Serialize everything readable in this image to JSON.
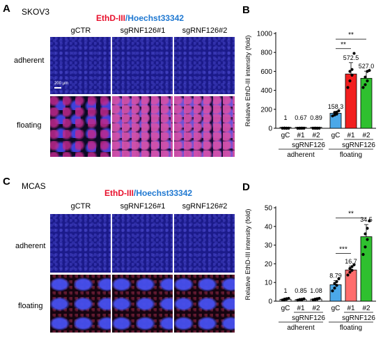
{
  "panel_letters": {
    "a": "A",
    "b": "B",
    "c": "C",
    "d": "D"
  },
  "panel_a": {
    "cell_line": "SKOV3",
    "stain_red": "EthD-III",
    "stain_sep": "/",
    "stain_blue": "Hoechst33342",
    "columns": [
      "gCTR",
      "sgRNF126#1",
      "sgRNF126#2"
    ],
    "rows": [
      "adherent",
      "floating"
    ],
    "scale_label": "200 μm"
  },
  "panel_c": {
    "cell_line": "MCAS",
    "stain_red": "EthD-III",
    "stain_sep": "/",
    "stain_blue": "Hoechst33342",
    "columns": [
      "gCTR",
      "sgRNF126#1",
      "sgRNF126#2"
    ],
    "rows": [
      "adherent",
      "floating"
    ]
  },
  "chart_data": [
    {
      "type": "bar",
      "panel": "B",
      "ylabel": "Relative EthD-III intensity (fold)",
      "ylim": [
        0,
        1000
      ],
      "yticks": [
        0,
        200,
        400,
        600,
        800,
        1000
      ],
      "categories": [
        "gC",
        "#1",
        "#2",
        "gC",
        "#1",
        "#2"
      ],
      "values": [
        1,
        0.67,
        0.89,
        158.3,
        572.5,
        527.0
      ],
      "value_labels": [
        "1",
        "0.67",
        "0.89",
        "158.3",
        "572.5",
        "527.0"
      ],
      "errors": [
        2,
        2,
        2,
        20,
        120,
        75
      ],
      "points": [
        [
          1,
          2,
          0,
          1,
          1,
          1
        ],
        [
          0,
          1,
          1,
          0,
          1,
          1
        ],
        [
          1,
          1,
          0,
          1,
          1,
          1
        ],
        [
          130,
          140,
          150,
          165,
          170,
          185
        ],
        [
          430,
          500,
          560,
          600,
          620,
          790
        ],
        [
          430,
          460,
          500,
          540,
          600,
          610
        ]
      ],
      "colors": [
        "#ffffff",
        "#ffffff",
        "#ffffff",
        "#4ba8e8",
        "#f21f1f",
        "#2fc02f"
      ],
      "group_labels": {
        "sg": [
          "sgRNF126",
          "sgRNF126"
        ],
        "groups": [
          "adherent",
          "floating"
        ]
      },
      "significance": [
        {
          "from": 3,
          "to": 4,
          "label": "**",
          "y": 840
        },
        {
          "from": 3,
          "to": 5,
          "label": "**",
          "y": 940
        }
      ]
    },
    {
      "type": "bar",
      "panel": "D",
      "ylabel": "Relative EthD-III intensity (fold)",
      "ylim": [
        0,
        50
      ],
      "yticks": [
        0,
        10,
        20,
        30,
        40,
        50
      ],
      "categories": [
        "gC",
        "#1",
        "#2",
        "gC",
        "#1",
        "#2"
      ],
      "values": [
        1,
        0.85,
        1.08,
        8.79,
        16.7,
        34.5
      ],
      "value_labels": [
        "1",
        "0.85",
        "1.08",
        "8.79",
        "16.7",
        "34.5"
      ],
      "errors": [
        0.4,
        0.3,
        0.4,
        2.2,
        2.0,
        6.5
      ],
      "points": [
        [
          0.6,
          0.8,
          1.0,
          1.1,
          1.3,
          1.5
        ],
        [
          0.5,
          0.7,
          0.8,
          0.9,
          1.0,
          1.2
        ],
        [
          0.7,
          0.9,
          1.0,
          1.1,
          1.3,
          1.5
        ],
        [
          5.5,
          7.0,
          8.5,
          9.5,
          10.5,
          12.0
        ],
        [
          14.0,
          15.5,
          16.5,
          17.5,
          18.5,
          19.5
        ],
        [
          25.0,
          29.0,
          33.0,
          36.0,
          39.0,
          43.0
        ]
      ],
      "colors": [
        "#ffffff",
        "#ffffff",
        "#ffffff",
        "#4ba8e8",
        "#ff6d6d",
        "#2fc02f"
      ],
      "group_labels": {
        "sg": [
          "sgRNF126",
          "sgRNF126"
        ],
        "groups": [
          "adherent",
          "floating"
        ]
      },
      "significance": [
        {
          "from": 3,
          "to": 4,
          "label": "***",
          "y": 25.5
        },
        {
          "from": 3,
          "to": 5,
          "label": "**",
          "y": 44.5
        }
      ]
    }
  ]
}
